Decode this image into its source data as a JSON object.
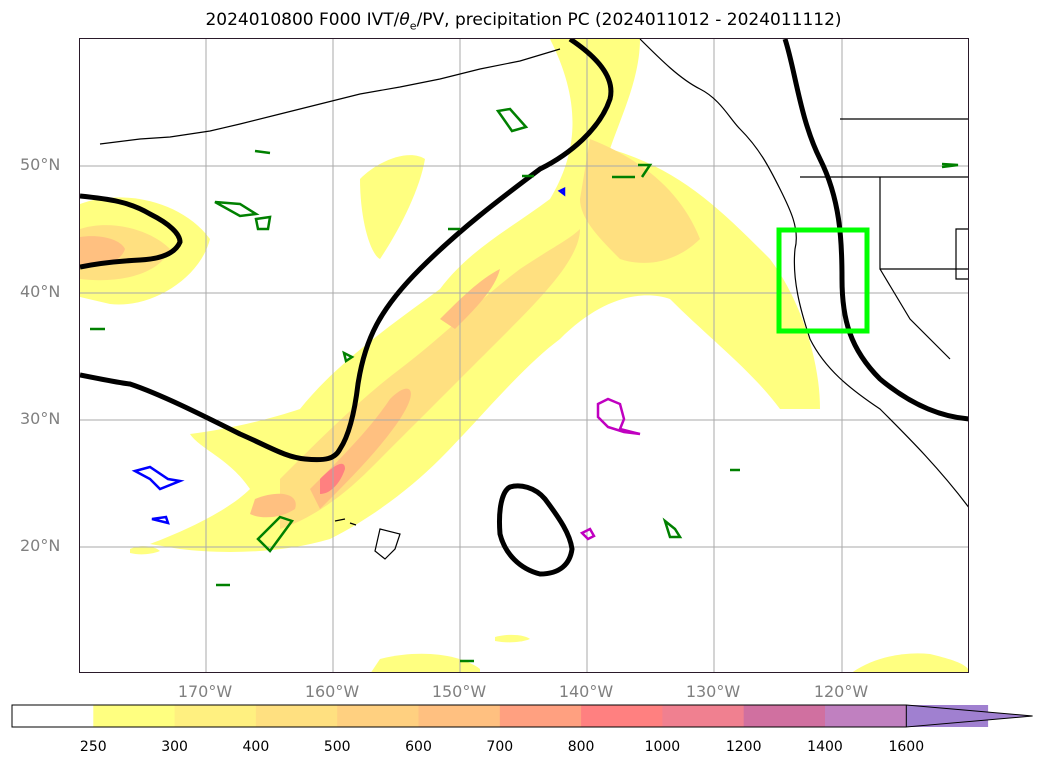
{
  "title": {
    "prefix": "2024010800 F000 IVT/",
    "theta": "θ",
    "theta_sub": "e",
    "suffix": "/PV, precipitation PC (2024011012 - 2024011112)"
  },
  "map": {
    "region": "North Pacific Ocean and western North America",
    "lat_labels": [
      "50°N",
      "40°N",
      "30°N",
      "20°N"
    ],
    "lon_labels": [
      "170°W",
      "160°W",
      "150°W",
      "140°W",
      "130°W",
      "120°W"
    ],
    "target_box_color": "#00ff00",
    "contour_colors": {
      "pv_line": "#000000",
      "green_contour": "#008000",
      "blue_contour": "#0000ff",
      "magenta_contour": "#c000c0"
    }
  },
  "colorbar": {
    "levels": [
      "250",
      "300",
      "400",
      "500",
      "600",
      "700",
      "800",
      "1000",
      "1200",
      "1400",
      "1600"
    ],
    "colors": [
      "#ffffff",
      "#ffff80",
      "#fff080",
      "#ffe080",
      "#ffd080",
      "#ffc080",
      "#ffa080",
      "#ff8080",
      "#f08090",
      "#d070a0",
      "#c080c0",
      "#a080d0"
    ],
    "extend": "max"
  }
}
